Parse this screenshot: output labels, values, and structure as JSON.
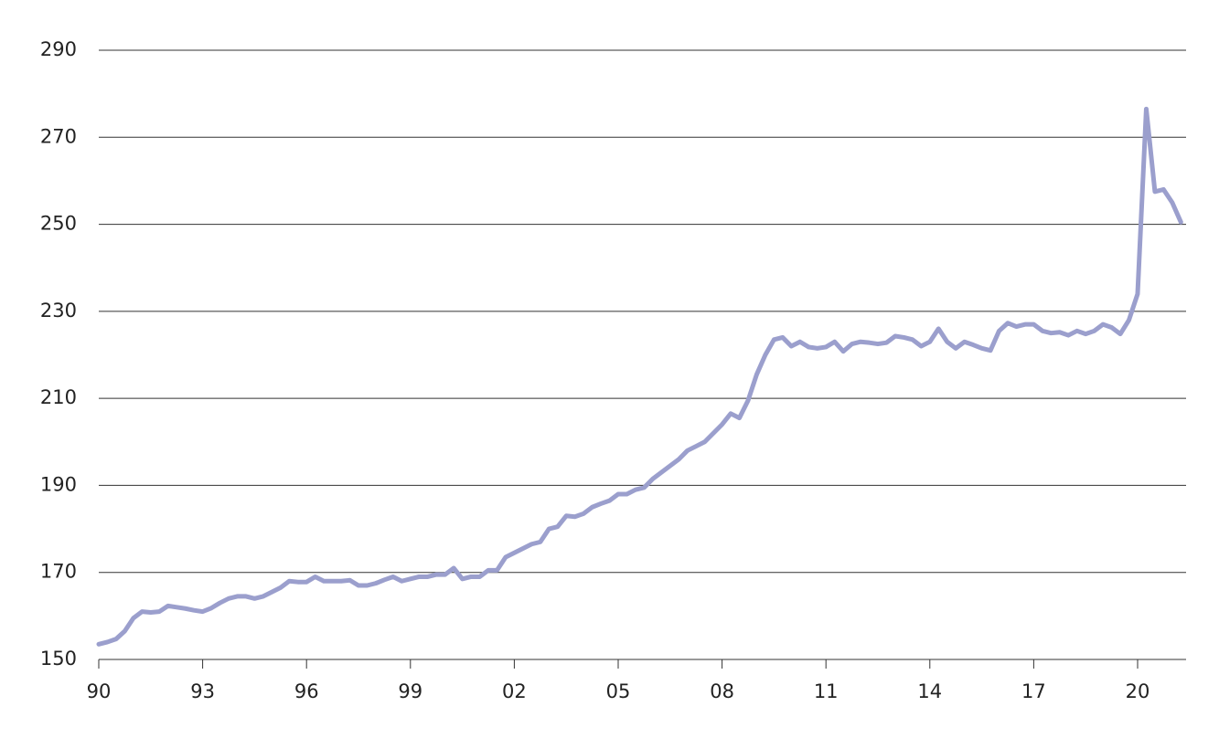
{
  "chart_data": {
    "type": "line",
    "x": [
      1990,
      1990.25,
      1990.5,
      1990.75,
      1991,
      1991.25,
      1991.5,
      1991.75,
      1992,
      1992.25,
      1992.5,
      1992.75,
      1993,
      1993.25,
      1993.5,
      1993.75,
      1994,
      1994.25,
      1994.5,
      1994.75,
      1995,
      1995.25,
      1995.5,
      1995.75,
      1996,
      1996.25,
      1996.5,
      1996.75,
      1997,
      1997.25,
      1997.5,
      1997.75,
      1998,
      1998.25,
      1998.5,
      1998.75,
      1999,
      1999.25,
      1999.5,
      1999.75,
      2000,
      2000.25,
      2000.5,
      2000.75,
      2001,
      2001.25,
      2001.5,
      2001.75,
      2002,
      2002.25,
      2002.5,
      2002.75,
      2003,
      2003.25,
      2003.5,
      2003.75,
      2004,
      2004.25,
      2004.5,
      2004.75,
      2005,
      2005.25,
      2005.5,
      2005.75,
      2006,
      2006.25,
      2006.5,
      2006.75,
      2007,
      2007.25,
      2007.5,
      2007.75,
      2008,
      2008.25,
      2008.5,
      2008.75,
      2009,
      2009.25,
      2009.5,
      2009.75,
      2010,
      2010.25,
      2010.5,
      2010.75,
      2011,
      2011.25,
      2011.5,
      2011.75,
      2012,
      2012.25,
      2012.5,
      2012.75,
      2013,
      2013.25,
      2013.5,
      2013.75,
      2014,
      2014.25,
      2014.5,
      2014.75,
      2015,
      2015.25,
      2015.5,
      2015.75,
      2016,
      2016.25,
      2016.5,
      2016.75,
      2017,
      2017.25,
      2017.5,
      2017.75,
      2018,
      2018.25,
      2018.5,
      2018.75,
      2019,
      2019.25,
      2019.5,
      2019.75,
      2020,
      2020.25,
      2020.5,
      2020.75,
      2021,
      2021.25
    ],
    "series": [
      {
        "color": "#9b9fcd",
        "values": [
          153.5,
          154,
          154.7,
          156.5,
          159.5,
          161,
          160.8,
          161,
          162.3,
          162,
          161.7,
          161.3,
          161,
          161.8,
          163,
          164,
          164.5,
          164.5,
          164,
          164.5,
          165.5,
          166.5,
          168,
          167.8,
          167.8,
          169,
          168,
          168,
          168,
          168.2,
          167,
          167,
          167.5,
          168.3,
          169,
          168,
          168.5,
          169,
          169,
          169.5,
          169.5,
          171,
          168.5,
          169,
          169,
          170.5,
          170.5,
          173.5,
          174.5,
          175.5,
          176.5,
          177,
          180,
          180.5,
          183,
          182.8,
          183.5,
          185,
          185.8,
          186.5,
          188,
          188,
          189,
          189.5,
          191.5,
          193,
          194.5,
          196,
          198,
          199,
          200,
          202,
          204,
          206.5,
          205.5,
          209.5,
          215.5,
          220,
          223.5,
          224,
          222,
          223,
          221.8,
          221.5,
          221.8,
          223,
          220.8,
          222.5,
          223,
          222.8,
          222.5,
          222.8,
          224.3,
          224,
          223.5,
          222,
          223,
          226,
          223,
          221.5,
          223,
          222.3,
          221.5,
          221,
          225.5,
          227.3,
          226.5,
          227,
          227,
          225.5,
          225,
          225.2,
          224.5,
          225.5,
          224.8,
          225.5,
          227,
          226.3,
          224.8,
          228,
          234,
          276.5,
          257.5,
          258,
          255,
          250.5
        ]
      }
    ],
    "xlim": [
      1990,
      2021.4
    ],
    "xticks": [
      {
        "value": 1990,
        "label": "90"
      },
      {
        "value": 1993,
        "label": "93"
      },
      {
        "value": 1996,
        "label": "96"
      },
      {
        "value": 1999,
        "label": "99"
      },
      {
        "value": 2002,
        "label": "02"
      },
      {
        "value": 2005,
        "label": "05"
      },
      {
        "value": 2008,
        "label": "08"
      },
      {
        "value": 2011,
        "label": "11"
      },
      {
        "value": 2014,
        "label": "14"
      },
      {
        "value": 2017,
        "label": "17"
      },
      {
        "value": 2020,
        "label": "20"
      }
    ],
    "ylim": [
      150,
      290
    ],
    "yticks": [
      150,
      170,
      190,
      210,
      230,
      250,
      270,
      290
    ],
    "grid": true
  }
}
